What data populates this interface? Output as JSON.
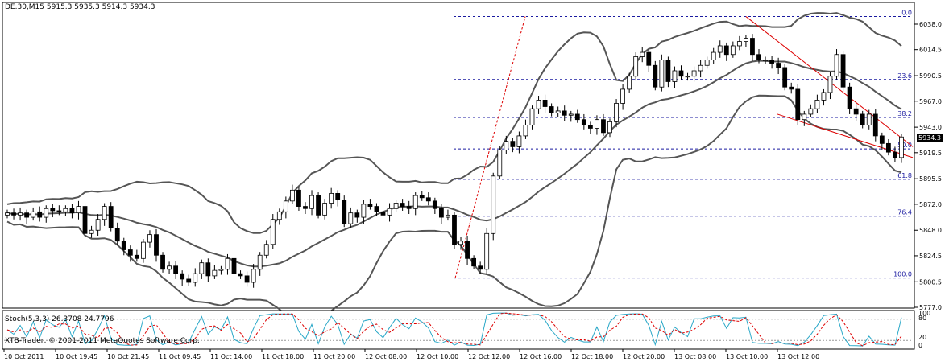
{
  "header": {
    "symbol": "DE.30,M15",
    "ohlc": "5915.3 5935.3 5914.3 5934.3"
  },
  "current_price": "5934.3",
  "stochastic": {
    "label": "Stoch(5,3,3) 26.3708 24.7796",
    "levels": [
      "100",
      "80",
      "20",
      "0"
    ]
  },
  "copyright": "XTB-Trader, © 2001-2011 MetaQuotes Software Corp.",
  "colors": {
    "candle_bull": "#ffffff",
    "candle_bear": "#000000",
    "bollinger": "#555555",
    "fib_lines": "#1a1aa0",
    "trend_lines": "#dd0000",
    "stoch_main": "#2aa8c8",
    "stoch_signal": "#dd0000"
  },
  "chart_data": {
    "type": "candlestick",
    "price_axis": [
      "6038.0",
      "6014.5",
      "5990.5",
      "5967.0",
      "5943.0",
      "5919.5",
      "5895.5",
      "5872.0",
      "5848.0",
      "5824.5",
      "5800.5",
      "5777.0"
    ],
    "ylim": [
      5770,
      6050
    ],
    "time_axis": [
      "10 Oct 2011",
      "10 Oct 19:45",
      "10 Oct 21:45",
      "11 Oct 09:45",
      "11 Oct 14:00",
      "11 Oct 18:00",
      "11 Oct 20:00",
      "12 Oct 08:00",
      "12 Oct 10:00",
      "12 Oct 12:00",
      "12 Oct 16:00",
      "12 Oct 18:00",
      "12 Oct 20:00",
      "13 Oct 08:00",
      "13 Oct 10:00",
      "13 Oct 12:00"
    ],
    "fibonacci": [
      {
        "label": "0.0",
        "price": 6045
      },
      {
        "label": "23.6",
        "price": 5987
      },
      {
        "label": "38.2",
        "price": 5952
      },
      {
        "label": "50.0",
        "price": 5923
      },
      {
        "label": "61.8",
        "price": 5895
      },
      {
        "label": "76.4",
        "price": 5861
      },
      {
        "label": "100.0",
        "price": 5804
      }
    ],
    "closes": [
      5864,
      5862,
      5864,
      5860,
      5865,
      5860,
      5868,
      5866,
      5865,
      5868,
      5864,
      5870,
      5845,
      5848,
      5858,
      5870,
      5850,
      5838,
      5830,
      5825,
      5822,
      5837,
      5844,
      5825,
      5812,
      5815,
      5808,
      5803,
      5800,
      5808,
      5818,
      5806,
      5811,
      5812,
      5822,
      5808,
      5806,
      5800,
      5812,
      5825,
      5835,
      5858,
      5865,
      5875,
      5885,
      5870,
      5868,
      5880,
      5862,
      5873,
      5882,
      5876,
      5854,
      5864,
      5860,
      5872,
      5870,
      5865,
      5862,
      5868,
      5873,
      5870,
      5868,
      5880,
      5878,
      5875,
      5868,
      5860,
      5862,
      5835,
      5838,
      5822,
      5815,
      5812,
      5845,
      5898,
      5922,
      5930,
      5925,
      5935,
      5945,
      5960,
      5968,
      5962,
      5956,
      5958,
      5954,
      5955,
      5950,
      5945,
      5942,
      5950,
      5938,
      5948,
      5965,
      5978,
      5990,
      6008,
      6012,
      6000,
      5980,
      6005,
      5985,
      5995,
      5990,
      5990,
      5995,
      6000,
      6005,
      6012,
      6018,
      6010,
      6018,
      6022,
      6025,
      6010,
      6005,
      6005,
      6002,
      5998,
      5980,
      5978,
      5950,
      5955,
      5960,
      5968,
      5975,
      5990,
      6010,
      5980,
      5960,
      5955,
      5945,
      5955,
      5935,
      5928,
      5920,
      5915,
      5934
    ]
  }
}
